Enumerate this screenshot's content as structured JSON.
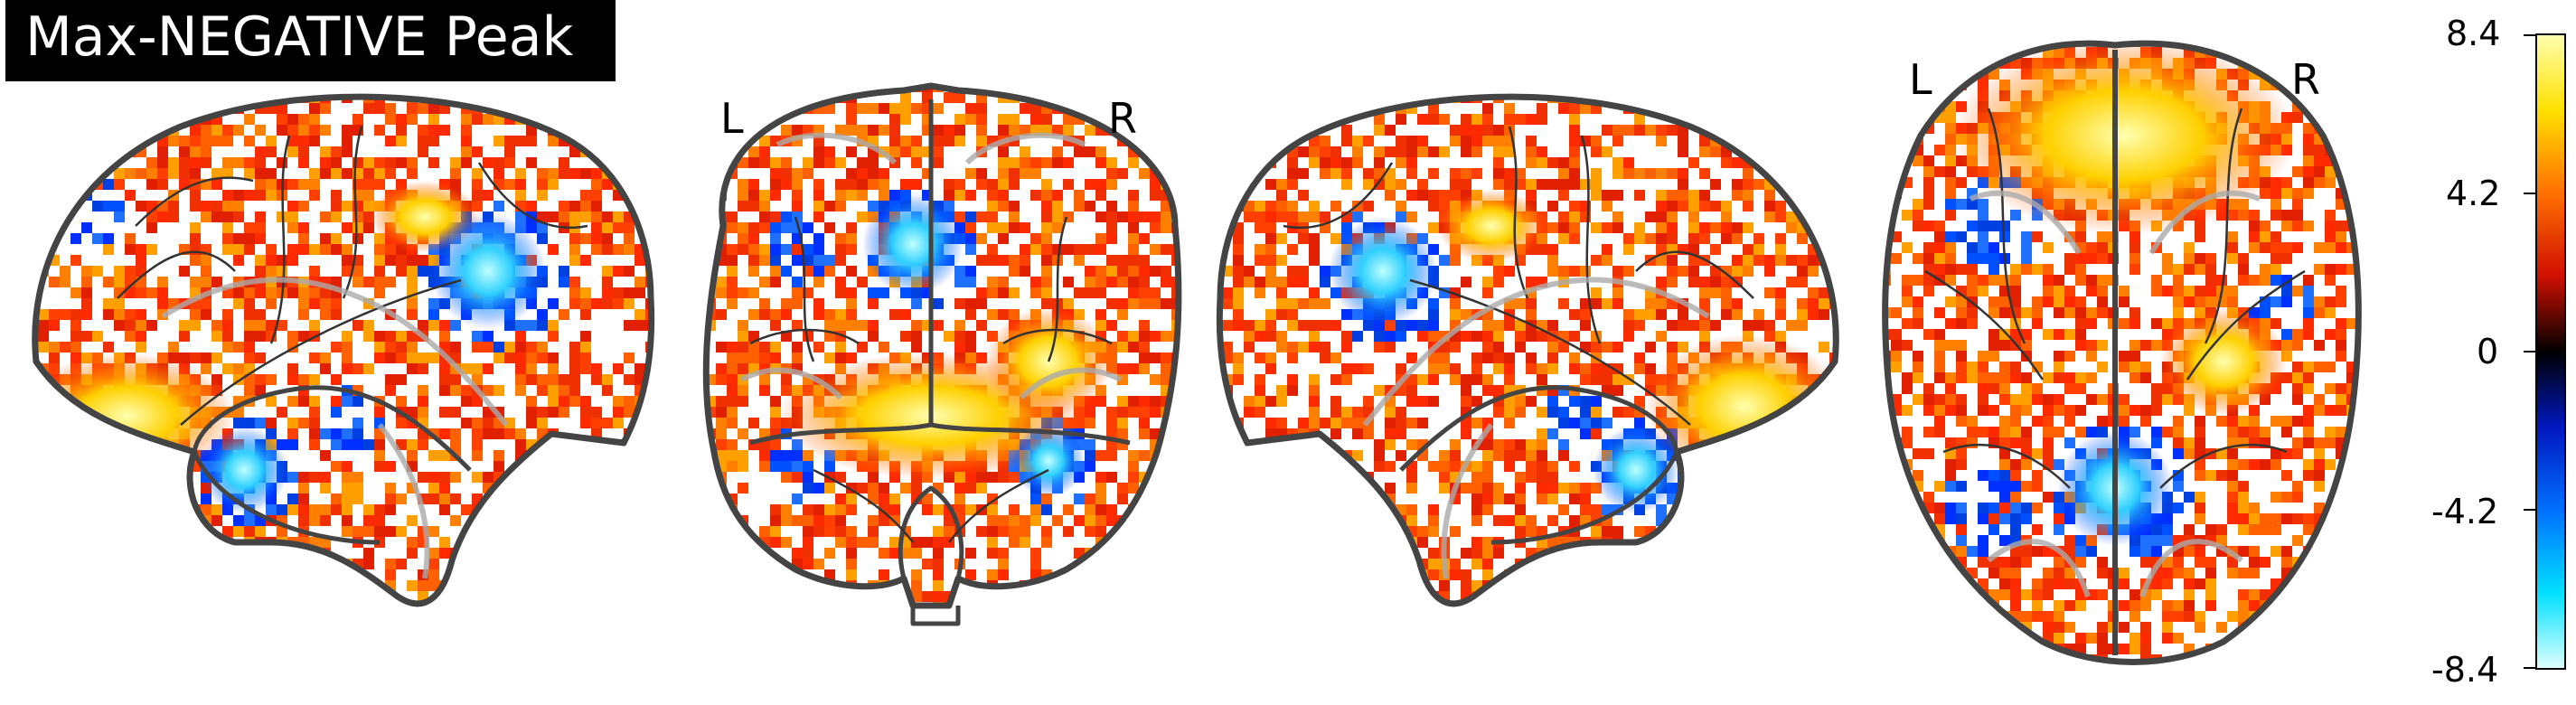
{
  "title": "Max-NEGATIVE Peak",
  "orientation_labels": {
    "coronal_left": "L",
    "coronal_right": "R",
    "axial_left": "L",
    "axial_right": "R"
  },
  "colorbar": {
    "colormap": "cold_hot",
    "max": 8.4,
    "min": -8.4,
    "ticks": [
      "8.4",
      "4.2",
      "0",
      "-4.2",
      "-8.4"
    ]
  },
  "views": [
    "sagittal-left",
    "coronal",
    "sagittal-right",
    "axial"
  ],
  "colors": {
    "background": "#ffffff",
    "outline": "#444444",
    "title_bg": "#000000",
    "title_fg": "#ffffff",
    "hot_low": "#e02000",
    "hot_high": "#ffff80",
    "cold_low": "#0030ff",
    "cold_high": "#a0ffff"
  }
}
